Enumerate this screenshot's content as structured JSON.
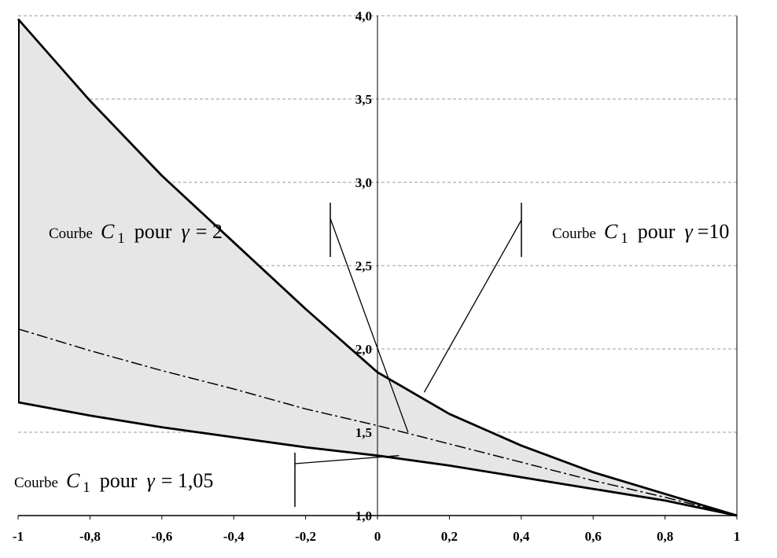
{
  "chart_data": {
    "type": "area",
    "title": "",
    "xlabel": "",
    "ylabel": "",
    "xlim": [
      -1,
      1
    ],
    "ylim": [
      1.0,
      4.0
    ],
    "x_ticks": [
      "-1",
      "-0,8",
      "-0,6",
      "-0,4",
      "-0,2",
      "0",
      "0,2",
      "0,4",
      "0,6",
      "0,8",
      "1"
    ],
    "y_ticks": [
      "1,0",
      "1,5",
      "2,0",
      "2,5",
      "3,0",
      "3,5",
      "4,0"
    ],
    "grid": "horizontal-dashed",
    "x": [
      -1,
      -0.8,
      -0.6,
      -0.4,
      -0.2,
      0,
      0.2,
      0.4,
      0.6,
      0.8,
      1
    ],
    "series": [
      {
        "name": "Courbe C1 pour γ = 10",
        "style": "solid-bold",
        "values": [
          3.98,
          3.49,
          3.04,
          2.64,
          2.24,
          1.86,
          1.61,
          1.42,
          1.26,
          1.13,
          1.0
        ]
      },
      {
        "name": "Courbe C1 pour γ = 2",
        "style": "dash-dot",
        "values": [
          2.12,
          1.99,
          1.87,
          1.76,
          1.64,
          1.54,
          1.43,
          1.32,
          1.21,
          1.11,
          1.0
        ]
      },
      {
        "name": "Courbe C1 pour γ = 1,05",
        "style": "solid-bold",
        "values": [
          1.68,
          1.6,
          1.53,
          1.47,
          1.41,
          1.36,
          1.3,
          1.23,
          1.16,
          1.09,
          1.0
        ]
      }
    ],
    "fill_between": {
      "upper": "Courbe C1 pour γ = 10",
      "lower": "Courbe C1 pour γ = 1,05",
      "color": "#e6e6e6"
    },
    "annotations": [
      {
        "id": "gamma2",
        "prefix": "Courbe",
        "symbol": "C",
        "subscript": "1",
        "word": "pour",
        "greek": "γ",
        "value": "= 2",
        "arrow_to": [
          0.085,
          1.5
        ]
      },
      {
        "id": "gamma10",
        "prefix": "Courbe",
        "symbol": "C",
        "subscript": "1",
        "word": "pour",
        "greek": "γ",
        "value": "=10",
        "arrow_to": [
          0.13,
          1.74
        ]
      },
      {
        "id": "gamma105",
        "prefix": "Courbe",
        "symbol": "C",
        "subscript": "1",
        "word": "pour",
        "greek": "γ",
        "value": "= 1,05",
        "arrow_to": [
          0.06,
          1.36
        ]
      }
    ]
  }
}
